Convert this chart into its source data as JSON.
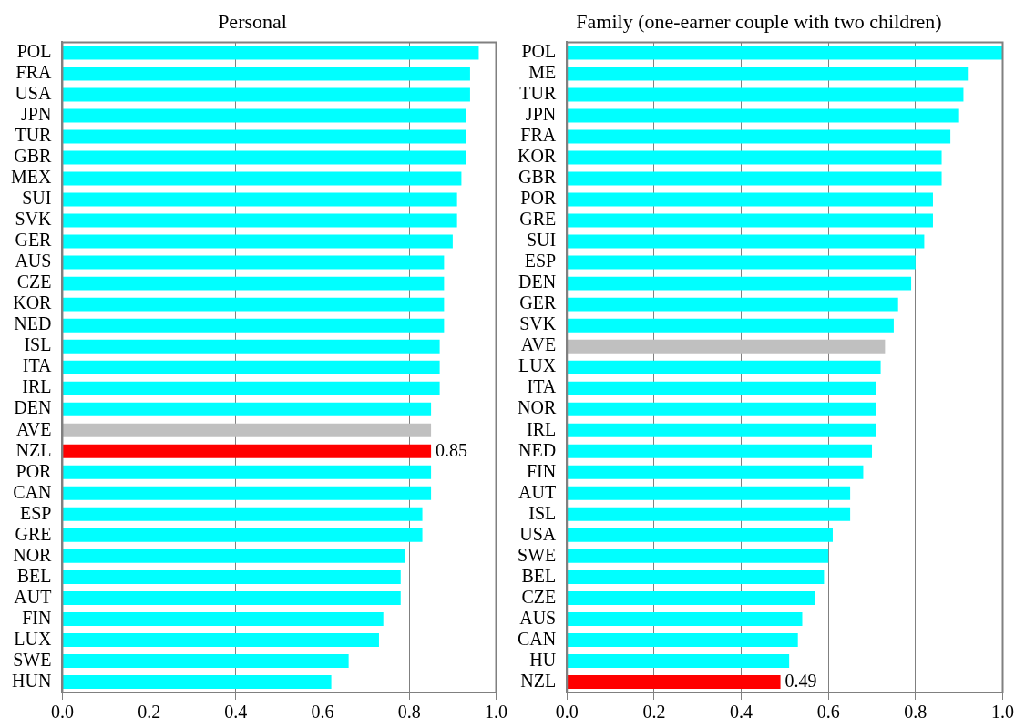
{
  "chart_data": [
    {
      "type": "bar",
      "orientation": "horizontal",
      "title": "Personal",
      "categories": [
        "POL",
        "FRA",
        "USA",
        "JPN",
        "TUR",
        "GBR",
        "MEX",
        "SUI",
        "SVK",
        "GER",
        "AUS",
        "CZE",
        "KOR",
        "NED",
        "ISL",
        "ITA",
        "IRL",
        "DEN",
        "AVE",
        "NZL",
        "POR",
        "CAN",
        "ESP",
        "GRE",
        "NOR",
        "BEL",
        "AUT",
        "FIN",
        "LUX",
        "SWE",
        "HUN"
      ],
      "values": [
        0.96,
        0.94,
        0.94,
        0.93,
        0.93,
        0.93,
        0.92,
        0.91,
        0.91,
        0.9,
        0.88,
        0.88,
        0.88,
        0.88,
        0.87,
        0.87,
        0.87,
        0.85,
        0.85,
        0.85,
        0.85,
        0.85,
        0.83,
        0.83,
        0.79,
        0.78,
        0.78,
        0.74,
        0.73,
        0.66,
        0.62
      ],
      "colors": [
        "#00ffff",
        "#00ffff",
        "#00ffff",
        "#00ffff",
        "#00ffff",
        "#00ffff",
        "#00ffff",
        "#00ffff",
        "#00ffff",
        "#00ffff",
        "#00ffff",
        "#00ffff",
        "#00ffff",
        "#00ffff",
        "#00ffff",
        "#00ffff",
        "#00ffff",
        "#00ffff",
        "#c0c0c0",
        "#ff0000",
        "#00ffff",
        "#00ffff",
        "#00ffff",
        "#00ffff",
        "#00ffff",
        "#00ffff",
        "#00ffff",
        "#00ffff",
        "#00ffff",
        "#00ffff",
        "#00ffff"
      ],
      "value_labels": [
        null,
        null,
        null,
        null,
        null,
        null,
        null,
        null,
        null,
        null,
        null,
        null,
        null,
        null,
        null,
        null,
        null,
        null,
        null,
        "0.85",
        null,
        null,
        null,
        null,
        null,
        null,
        null,
        null,
        null,
        null,
        null
      ],
      "xlim": [
        0,
        1
      ],
      "xticks": [
        {
          "value": 0,
          "label": "0.0"
        },
        {
          "value": 0.2,
          "label": "0.2"
        },
        {
          "value": 0.4,
          "label": "0.4"
        },
        {
          "value": 0.6,
          "label": "0.6"
        },
        {
          "value": 0.8,
          "label": "0.8"
        },
        {
          "value": 1,
          "label": "1.0"
        }
      ],
      "grid": "x",
      "legend": false
    },
    {
      "type": "bar",
      "orientation": "horizontal",
      "title": "Family (one-earner couple with two children)",
      "categories": [
        "POL",
        "ME",
        "TUR",
        "JPN",
        "FRA",
        "KOR",
        "GBR",
        "POR",
        "GRE",
        "SUI",
        "ESP",
        "DEN",
        "GER",
        "SVK",
        "AVE",
        "LUX",
        "ITA",
        "NOR",
        "IRL",
        "NED",
        "FIN",
        "AUT",
        "ISL",
        "USA",
        "SWE",
        "BEL",
        "CZE",
        "AUS",
        "CAN",
        "HU",
        "NZL"
      ],
      "values": [
        1.0,
        0.92,
        0.91,
        0.9,
        0.88,
        0.86,
        0.86,
        0.84,
        0.84,
        0.82,
        0.8,
        0.79,
        0.76,
        0.75,
        0.73,
        0.72,
        0.71,
        0.71,
        0.71,
        0.7,
        0.68,
        0.65,
        0.65,
        0.61,
        0.6,
        0.59,
        0.57,
        0.54,
        0.53,
        0.51,
        0.49
      ],
      "colors": [
        "#00ffff",
        "#00ffff",
        "#00ffff",
        "#00ffff",
        "#00ffff",
        "#00ffff",
        "#00ffff",
        "#00ffff",
        "#00ffff",
        "#00ffff",
        "#00ffff",
        "#00ffff",
        "#00ffff",
        "#00ffff",
        "#c0c0c0",
        "#00ffff",
        "#00ffff",
        "#00ffff",
        "#00ffff",
        "#00ffff",
        "#00ffff",
        "#00ffff",
        "#00ffff",
        "#00ffff",
        "#00ffff",
        "#00ffff",
        "#00ffff",
        "#00ffff",
        "#00ffff",
        "#00ffff",
        "#ff0000"
      ],
      "value_labels": [
        null,
        null,
        null,
        null,
        null,
        null,
        null,
        null,
        null,
        null,
        null,
        null,
        null,
        null,
        null,
        null,
        null,
        null,
        null,
        null,
        null,
        null,
        null,
        null,
        null,
        null,
        null,
        null,
        null,
        null,
        "0.49"
      ],
      "xlim": [
        0,
        1
      ],
      "xticks": [
        {
          "value": 0,
          "label": "0.0"
        },
        {
          "value": 0.2,
          "label": "0.2"
        },
        {
          "value": 0.4,
          "label": "0.4"
        },
        {
          "value": 0.6,
          "label": "0.6"
        },
        {
          "value": 0.8,
          "label": "0.8"
        },
        {
          "value": 1,
          "label": "1.0"
        }
      ],
      "grid": "x",
      "legend": false
    }
  ]
}
